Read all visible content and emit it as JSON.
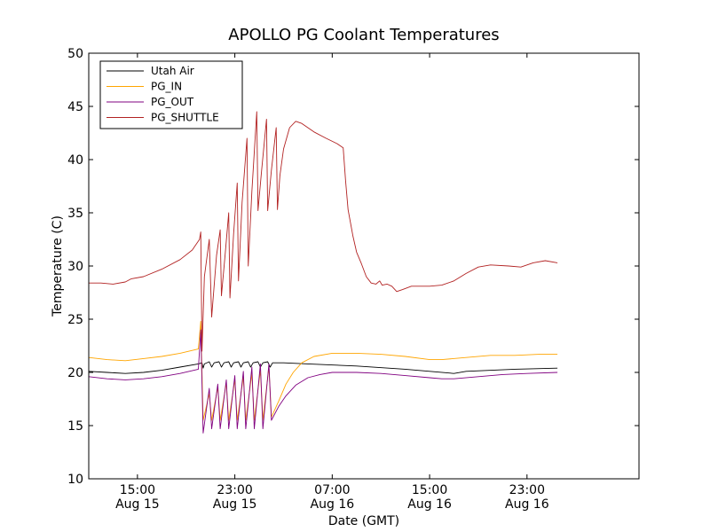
{
  "chart_data": {
    "type": "line",
    "title": "APOLLO PG Coolant Temperatures",
    "xlabel": "Date (GMT)",
    "ylabel": "Temperature (C)",
    "x_unit": "hours since Aug 15 11:00 GMT",
    "xlim": [
      0,
      45.2
    ],
    "ylim": [
      10,
      50
    ],
    "yticks": [
      10,
      15,
      20,
      25,
      30,
      35,
      40,
      45,
      50
    ],
    "xticks": [
      {
        "x": 4,
        "line1": "15:00",
        "line2": "Aug 15"
      },
      {
        "x": 12,
        "line1": "23:00",
        "line2": "Aug 15"
      },
      {
        "x": 20,
        "line1": "07:00",
        "line2": "Aug 16"
      },
      {
        "x": 28,
        "line1": "15:00",
        "line2": "Aug 16"
      },
      {
        "x": 36,
        "line1": "23:00",
        "line2": "Aug 16"
      }
    ],
    "legend_position": "top-left",
    "series": [
      {
        "name": "Utah Air",
        "color": "#000000",
        "points": [
          [
            0,
            20.1
          ],
          [
            1.5,
            20.0
          ],
          [
            3,
            19.9
          ],
          [
            4.5,
            20.0
          ],
          [
            6,
            20.2
          ],
          [
            7.5,
            20.5
          ],
          [
            9,
            20.8
          ],
          [
            9.3,
            20.9
          ],
          [
            9.4,
            20.4
          ],
          [
            9.5,
            20.8
          ],
          [
            9.9,
            21.0
          ],
          [
            10.1,
            20.5
          ],
          [
            10.3,
            20.9
          ],
          [
            10.7,
            21.0
          ],
          [
            10.9,
            20.5
          ],
          [
            11.1,
            20.9
          ],
          [
            11.5,
            21.0
          ],
          [
            11.7,
            20.5
          ],
          [
            11.9,
            20.9
          ],
          [
            12.3,
            21.0
          ],
          [
            12.5,
            20.5
          ],
          [
            12.7,
            20.9
          ],
          [
            13.1,
            21.0
          ],
          [
            13.3,
            20.5
          ],
          [
            13.5,
            20.9
          ],
          [
            13.9,
            21.0
          ],
          [
            14.1,
            20.5
          ],
          [
            14.3,
            20.9
          ],
          [
            14.7,
            21.0
          ],
          [
            14.9,
            20.5
          ],
          [
            15.1,
            20.9
          ],
          [
            16,
            20.9
          ],
          [
            18,
            20.8
          ],
          [
            22,
            20.6
          ],
          [
            26,
            20.3
          ],
          [
            30,
            19.9
          ],
          [
            31,
            20.1
          ],
          [
            35,
            20.3
          ],
          [
            38.5,
            20.4
          ]
        ]
      },
      {
        "name": "PG_IN",
        "color": "#ffa500",
        "points": [
          [
            0,
            21.4
          ],
          [
            1.5,
            21.2
          ],
          [
            3,
            21.1
          ],
          [
            4.5,
            21.3
          ],
          [
            6,
            21.5
          ],
          [
            7.5,
            21.8
          ],
          [
            9,
            22.2
          ],
          [
            9.2,
            24.8
          ],
          [
            9.4,
            15.5
          ],
          [
            9.9,
            18.0
          ],
          [
            10.1,
            15.5
          ],
          [
            10.6,
            18.6
          ],
          [
            10.8,
            15.5
          ],
          [
            11.3,
            19.0
          ],
          [
            11.5,
            15.5
          ],
          [
            12.0,
            19.3
          ],
          [
            12.2,
            15.5
          ],
          [
            12.7,
            19.6
          ],
          [
            12.9,
            15.5
          ],
          [
            13.4,
            19.9
          ],
          [
            13.6,
            15.5
          ],
          [
            14.1,
            20.2
          ],
          [
            14.3,
            15.5
          ],
          [
            14.8,
            20.5
          ],
          [
            15.0,
            15.8
          ],
          [
            15.6,
            17.3
          ],
          [
            16.2,
            18.9
          ],
          [
            16.8,
            20.0
          ],
          [
            17.5,
            20.9
          ],
          [
            18.5,
            21.5
          ],
          [
            20,
            21.8
          ],
          [
            22,
            21.8
          ],
          [
            24,
            21.7
          ],
          [
            26,
            21.5
          ],
          [
            28,
            21.2
          ],
          [
            29,
            21.2
          ],
          [
            31,
            21.4
          ],
          [
            33,
            21.6
          ],
          [
            35,
            21.6
          ],
          [
            37,
            21.7
          ],
          [
            38.5,
            21.7
          ]
        ]
      },
      {
        "name": "PG_OUT",
        "color": "#800080",
        "points": [
          [
            0,
            19.6
          ],
          [
            1.5,
            19.4
          ],
          [
            3,
            19.3
          ],
          [
            4.5,
            19.4
          ],
          [
            6,
            19.6
          ],
          [
            7.5,
            19.9
          ],
          [
            9,
            20.3
          ],
          [
            9.2,
            24.0
          ],
          [
            9.4,
            14.3
          ],
          [
            9.9,
            18.5
          ],
          [
            10.1,
            14.7
          ],
          [
            10.6,
            18.9
          ],
          [
            10.8,
            14.7
          ],
          [
            11.3,
            19.3
          ],
          [
            11.5,
            14.7
          ],
          [
            12.0,
            19.7
          ],
          [
            12.2,
            14.7
          ],
          [
            12.7,
            20.1
          ],
          [
            12.9,
            14.7
          ],
          [
            13.4,
            20.5
          ],
          [
            13.6,
            14.7
          ],
          [
            14.1,
            20.8
          ],
          [
            14.3,
            14.7
          ],
          [
            14.8,
            20.8
          ],
          [
            15.0,
            15.5
          ],
          [
            15.6,
            16.8
          ],
          [
            16.2,
            17.8
          ],
          [
            17,
            18.8
          ],
          [
            18,
            19.5
          ],
          [
            19,
            19.8
          ],
          [
            20,
            20.0
          ],
          [
            22,
            20.0
          ],
          [
            24,
            19.9
          ],
          [
            26,
            19.7
          ],
          [
            28,
            19.5
          ],
          [
            29,
            19.4
          ],
          [
            30,
            19.4
          ],
          [
            32,
            19.6
          ],
          [
            34,
            19.8
          ],
          [
            36,
            19.9
          ],
          [
            38.5,
            20.0
          ]
        ]
      },
      {
        "name": "PG_SHUTTLE",
        "color": "#b22222",
        "points": [
          [
            0,
            28.4
          ],
          [
            1,
            28.4
          ],
          [
            2,
            28.3
          ],
          [
            3,
            28.5
          ],
          [
            3.5,
            28.8
          ],
          [
            4.5,
            29.0
          ],
          [
            6,
            29.7
          ],
          [
            7.5,
            30.6
          ],
          [
            8.5,
            31.5
          ],
          [
            9.1,
            32.5
          ],
          [
            9.2,
            33.2
          ],
          [
            9.3,
            22.0
          ],
          [
            9.5,
            29.0
          ],
          [
            9.9,
            32.5
          ],
          [
            10.1,
            25.2
          ],
          [
            10.5,
            31.0
          ],
          [
            10.8,
            33.4
          ],
          [
            10.9,
            27.2
          ],
          [
            11.2,
            31.0
          ],
          [
            11.5,
            35.0
          ],
          [
            11.6,
            27.0
          ],
          [
            11.9,
            33.0
          ],
          [
            12.2,
            37.8
          ],
          [
            12.3,
            28.6
          ],
          [
            12.6,
            36.0
          ],
          [
            13.0,
            42.0
          ],
          [
            13.1,
            30.0
          ],
          [
            13.4,
            37.0
          ],
          [
            13.8,
            44.5
          ],
          [
            13.9,
            35.2
          ],
          [
            14.2,
            39.0
          ],
          [
            14.6,
            43.8
          ],
          [
            14.7,
            35.2
          ],
          [
            15.0,
            39.0
          ],
          [
            15.4,
            43.0
          ],
          [
            15.5,
            35.3
          ],
          [
            15.7,
            38.5
          ],
          [
            16,
            41.0
          ],
          [
            16.5,
            43.0
          ],
          [
            17,
            43.6
          ],
          [
            17.5,
            43.4
          ],
          [
            18.5,
            42.6
          ],
          [
            19.5,
            42.0
          ],
          [
            20.4,
            41.5
          ],
          [
            20.9,
            41.1
          ],
          [
            21.1,
            38.0
          ],
          [
            21.3,
            35.3
          ],
          [
            21.7,
            32.8
          ],
          [
            22.0,
            31.3
          ],
          [
            22.4,
            30.2
          ],
          [
            22.8,
            29.0
          ],
          [
            23.2,
            28.4
          ],
          [
            23.6,
            28.3
          ],
          [
            23.9,
            28.6
          ],
          [
            24.1,
            28.2
          ],
          [
            24.5,
            28.3
          ],
          [
            24.9,
            28.1
          ],
          [
            25.3,
            27.6
          ],
          [
            25.8,
            27.8
          ],
          [
            26.5,
            28.1
          ],
          [
            28,
            28.1
          ],
          [
            29,
            28.2
          ],
          [
            30,
            28.6
          ],
          [
            31,
            29.3
          ],
          [
            32,
            29.9
          ],
          [
            33,
            30.1
          ],
          [
            34.5,
            30.0
          ],
          [
            35.5,
            29.9
          ],
          [
            36.5,
            30.3
          ],
          [
            37.5,
            30.5
          ],
          [
            38.5,
            30.3
          ]
        ]
      }
    ]
  }
}
